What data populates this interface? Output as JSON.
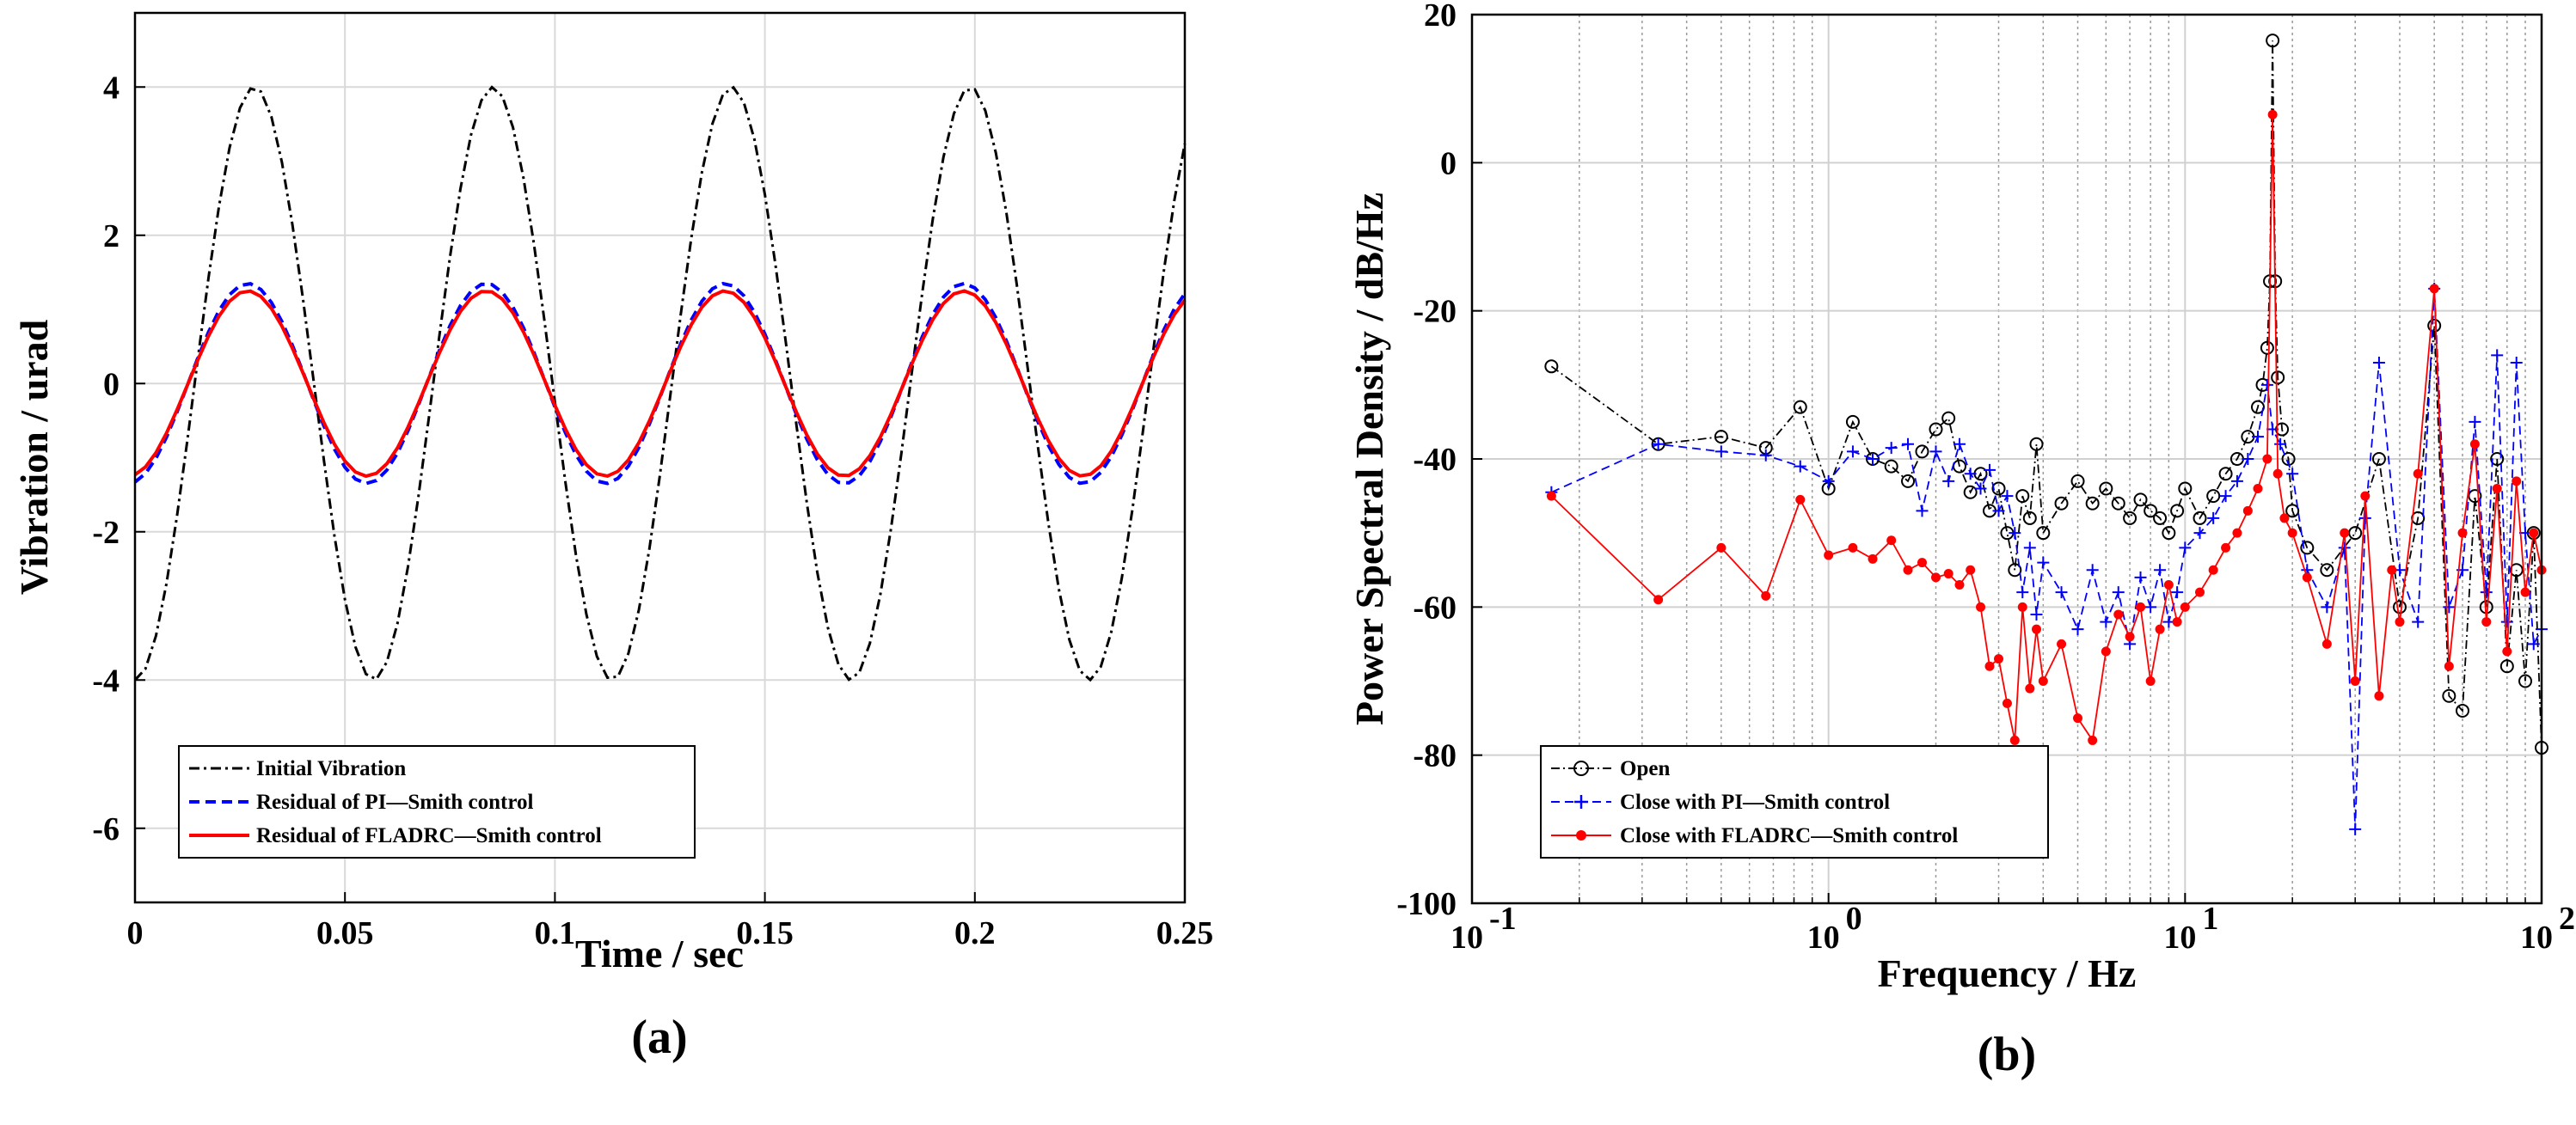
{
  "chart_data": [
    {
      "type": "line",
      "panel_label": "(a)",
      "xlabel": "Time / sec",
      "ylabel": "Vibration / urad",
      "xlim": [
        0,
        0.25
      ],
      "ylim": [
        -7,
        5
      ],
      "xticks": [
        0,
        0.05,
        0.1,
        0.15,
        0.2,
        0.25
      ],
      "xtick_labels": [
        "0",
        "0.05",
        "0.1",
        "0.15",
        "0.2",
        "0.25"
      ],
      "yticks": [
        -6,
        -4,
        -2,
        0,
        2,
        4
      ],
      "ytick_labels": [
        "-6",
        "-4",
        "-2",
        "0",
        "2",
        "4"
      ],
      "grid": true,
      "legend_position": "bottom-left",
      "series": [
        {
          "name": "Initial Vibration",
          "color": "#000000",
          "style": "dash-dot",
          "amplitude": 4.0,
          "frequency_hz": 17.6,
          "phase_deg": 0
        },
        {
          "name": "Residual of PI—Smith control",
          "color": "#0000ff",
          "style": "dashed",
          "amplitude": 1.35,
          "frequency_hz": 17.6,
          "phase_deg": 10
        },
        {
          "name": "Residual of FLADRC—Smith control",
          "color": "#ff0000",
          "style": "solid",
          "amplitude": 1.25,
          "frequency_hz": 17.6,
          "phase_deg": 10
        }
      ]
    },
    {
      "type": "line",
      "panel_label": "(b)",
      "xlabel": "Frequency / Hz",
      "ylabel": "Power Spectral Density / dB/Hz",
      "xscale": "log",
      "xlim": [
        0.1,
        100
      ],
      "ylim": [
        -100,
        20
      ],
      "xticks": [
        0.1,
        1,
        10,
        100
      ],
      "xtick_labels": [
        {
          "base": "10",
          "exp": "-1"
        },
        {
          "base": "10",
          "exp": "0"
        },
        {
          "base": "10",
          "exp": "1"
        },
        {
          "base": "10",
          "exp": "2"
        }
      ],
      "yticks": [
        -100,
        -80,
        -60,
        -40,
        -20,
        0,
        20
      ],
      "ytick_labels": [
        "-100",
        "-80",
        "-60",
        "-40",
        "-20",
        "0",
        "20"
      ],
      "grid": true,
      "legend_position": "bottom-left",
      "peak_hz": 17.6,
      "series": [
        {
          "name": "Open",
          "color": "#000000",
          "style": "dash-dot",
          "marker": "circle",
          "points": [
            [
              0.167,
              -27.5
            ],
            [
              0.333,
              -38
            ],
            [
              0.5,
              -37
            ],
            [
              0.667,
              -38.5
            ],
            [
              0.833,
              -33
            ],
            [
              1.0,
              -44
            ],
            [
              1.17,
              -35
            ],
            [
              1.33,
              -40
            ],
            [
              1.5,
              -41
            ],
            [
              1.67,
              -43
            ],
            [
              1.83,
              -39
            ],
            [
              2.0,
              -36
            ],
            [
              2.17,
              -34.5
            ],
            [
              2.33,
              -41
            ],
            [
              2.5,
              -44.5
            ],
            [
              2.67,
              -42
            ],
            [
              2.83,
              -47
            ],
            [
              3.0,
              -44
            ],
            [
              3.17,
              -50
            ],
            [
              3.33,
              -55
            ],
            [
              3.5,
              -45
            ],
            [
              3.67,
              -48
            ],
            [
              3.83,
              -38
            ],
            [
              4.0,
              -50
            ],
            [
              4.5,
              -46
            ],
            [
              5.0,
              -43
            ],
            [
              5.5,
              -46
            ],
            [
              6.0,
              -44
            ],
            [
              6.5,
              -46
            ],
            [
              7.0,
              -48
            ],
            [
              7.5,
              -45.5
            ],
            [
              8.0,
              -47
            ],
            [
              8.5,
              -48
            ],
            [
              9.0,
              -50
            ],
            [
              9.5,
              -47
            ],
            [
              10.0,
              -44
            ],
            [
              11.0,
              -48
            ],
            [
              12.0,
              -45
            ],
            [
              13.0,
              -42
            ],
            [
              14.0,
              -40
            ],
            [
              15.0,
              -37
            ],
            [
              16.0,
              -33
            ],
            [
              16.5,
              -30
            ],
            [
              17.0,
              -25
            ],
            [
              17.3,
              -16
            ],
            [
              17.6,
              16.5
            ],
            [
              17.9,
              -16
            ],
            [
              18.2,
              -29
            ],
            [
              18.7,
              -36
            ],
            [
              19.5,
              -40
            ],
            [
              20.0,
              -47
            ],
            [
              22.0,
              -52
            ],
            [
              25.0,
              -55
            ],
            [
              30.0,
              -50
            ],
            [
              35.0,
              -40
            ],
            [
              40.0,
              -60
            ],
            [
              45.0,
              -48
            ],
            [
              50.0,
              -22
            ],
            [
              55.0,
              -72
            ],
            [
              60.0,
              -74
            ],
            [
              65.0,
              -45
            ],
            [
              70.0,
              -60
            ],
            [
              75.0,
              -40
            ],
            [
              80.0,
              -68
            ],
            [
              85.0,
              -55
            ],
            [
              90.0,
              -70
            ],
            [
              95.0,
              -50
            ],
            [
              100.0,
              -79
            ]
          ]
        },
        {
          "name": "Close with PI—Smith control",
          "color": "#0000ff",
          "style": "dashed",
          "marker": "plus",
          "points": [
            [
              0.167,
              -44.5
            ],
            [
              0.333,
              -38
            ],
            [
              0.5,
              -39
            ],
            [
              0.667,
              -39.5
            ],
            [
              0.833,
              -41
            ],
            [
              1.0,
              -43
            ],
            [
              1.17,
              -39
            ],
            [
              1.33,
              -40
            ],
            [
              1.5,
              -38.5
            ],
            [
              1.67,
              -38
            ],
            [
              1.83,
              -47
            ],
            [
              2.0,
              -39
            ],
            [
              2.17,
              -43
            ],
            [
              2.33,
              -38
            ],
            [
              2.5,
              -42
            ],
            [
              2.67,
              -44
            ],
            [
              2.83,
              -41.5
            ],
            [
              3.0,
              -47
            ],
            [
              3.17,
              -45
            ],
            [
              3.33,
              -50
            ],
            [
              3.5,
              -58
            ],
            [
              3.67,
              -52
            ],
            [
              3.83,
              -61
            ],
            [
              4.0,
              -54
            ],
            [
              4.5,
              -58
            ],
            [
              5.0,
              -63
            ],
            [
              5.5,
              -55
            ],
            [
              6.0,
              -62
            ],
            [
              6.5,
              -58
            ],
            [
              7.0,
              -65
            ],
            [
              7.5,
              -56
            ],
            [
              8.0,
              -60
            ],
            [
              8.5,
              -55
            ],
            [
              9.0,
              -62
            ],
            [
              9.5,
              -58
            ],
            [
              10.0,
              -52
            ],
            [
              11.0,
              -50
            ],
            [
              12.0,
              -48
            ],
            [
              13.0,
              -45
            ],
            [
              14.0,
              -43
            ],
            [
              15.0,
              -40
            ],
            [
              16.0,
              -37
            ],
            [
              17.0,
              -30
            ],
            [
              17.6,
              -36
            ],
            [
              18.5,
              -38
            ],
            [
              20.0,
              -42
            ],
            [
              22.0,
              -55
            ],
            [
              25.0,
              -60
            ],
            [
              28.0,
              -52
            ],
            [
              30.0,
              -90
            ],
            [
              32.0,
              -48
            ],
            [
              35.0,
              -27
            ],
            [
              40.0,
              -55
            ],
            [
              45.0,
              -62
            ],
            [
              50.0,
              -17
            ],
            [
              55.0,
              -60
            ],
            [
              60.0,
              -55
            ],
            [
              65.0,
              -35
            ],
            [
              70.0,
              -58
            ],
            [
              75.0,
              -26
            ],
            [
              80.0,
              -62
            ],
            [
              85.0,
              -27
            ],
            [
              90.0,
              -50
            ],
            [
              95.0,
              -65
            ],
            [
              100.0,
              -63
            ]
          ]
        },
        {
          "name": "Close with FLADRC—Smith control",
          "color": "#ff0000",
          "style": "solid",
          "marker": "dot",
          "points": [
            [
              0.167,
              -45
            ],
            [
              0.333,
              -59
            ],
            [
              0.5,
              -52
            ],
            [
              0.667,
              -58.5
            ],
            [
              0.833,
              -45.5
            ],
            [
              1.0,
              -53
            ],
            [
              1.17,
              -52
            ],
            [
              1.33,
              -53.5
            ],
            [
              1.5,
              -51
            ],
            [
              1.67,
              -55
            ],
            [
              1.83,
              -54
            ],
            [
              2.0,
              -56
            ],
            [
              2.17,
              -55.5
            ],
            [
              2.33,
              -57
            ],
            [
              2.5,
              -55
            ],
            [
              2.67,
              -60
            ],
            [
              2.83,
              -68
            ],
            [
              3.0,
              -67
            ],
            [
              3.17,
              -73
            ],
            [
              3.33,
              -78
            ],
            [
              3.5,
              -60
            ],
            [
              3.67,
              -71
            ],
            [
              3.83,
              -63
            ],
            [
              4.0,
              -70
            ],
            [
              4.5,
              -65
            ],
            [
              5.0,
              -75
            ],
            [
              5.5,
              -78
            ],
            [
              6.0,
              -66
            ],
            [
              6.5,
              -61
            ],
            [
              7.0,
              -64
            ],
            [
              7.5,
              -60
            ],
            [
              8.0,
              -70
            ],
            [
              8.5,
              -63
            ],
            [
              9.0,
              -57
            ],
            [
              9.5,
              -62
            ],
            [
              10.0,
              -60
            ],
            [
              11.0,
              -58
            ],
            [
              12.0,
              -55
            ],
            [
              13.0,
              -52
            ],
            [
              14.0,
              -50
            ],
            [
              15.0,
              -47
            ],
            [
              16.0,
              -44
            ],
            [
              17.0,
              -40
            ],
            [
              17.6,
              6.5
            ],
            [
              18.2,
              -42
            ],
            [
              19.0,
              -48
            ],
            [
              20.0,
              -50
            ],
            [
              22.0,
              -56
            ],
            [
              25.0,
              -65
            ],
            [
              28.0,
              -50
            ],
            [
              30.0,
              -70
            ],
            [
              32.0,
              -45
            ],
            [
              35.0,
              -72
            ],
            [
              38.0,
              -55
            ],
            [
              40.0,
              -62
            ],
            [
              45.0,
              -42
            ],
            [
              50.0,
              -17
            ],
            [
              55.0,
              -68
            ],
            [
              60.0,
              -50
            ],
            [
              65.0,
              -38
            ],
            [
              70.0,
              -62
            ],
            [
              75.0,
              -44
            ],
            [
              80.0,
              -66
            ],
            [
              85.0,
              -43
            ],
            [
              90.0,
              -58
            ],
            [
              95.0,
              -50
            ],
            [
              100.0,
              -55
            ]
          ]
        }
      ]
    }
  ]
}
